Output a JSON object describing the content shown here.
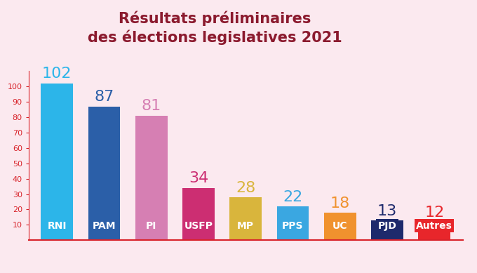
{
  "chart_data": {
    "type": "bar",
    "title": "Résultats préliminaires\ndes élections legislatives 2021",
    "categories": [
      "RNI",
      "PAM",
      "PI",
      "USFP",
      "MP",
      "PPS",
      "UC",
      "PJD",
      "Autres"
    ],
    "values": [
      102,
      87,
      81,
      34,
      28,
      22,
      18,
      13,
      12
    ],
    "colors": [
      "#2cb5e9",
      "#2b5fa8",
      "#d67fb3",
      "#cc2e72",
      "#d9b53c",
      "#3aa7e1",
      "#f0922e",
      "#1d2a6c",
      "#e8262b"
    ],
    "ylim": [
      0,
      110
    ],
    "yticks": [
      10,
      20,
      30,
      40,
      50,
      60,
      70,
      80,
      90,
      100
    ],
    "grid": false,
    "data_labels": true
  }
}
